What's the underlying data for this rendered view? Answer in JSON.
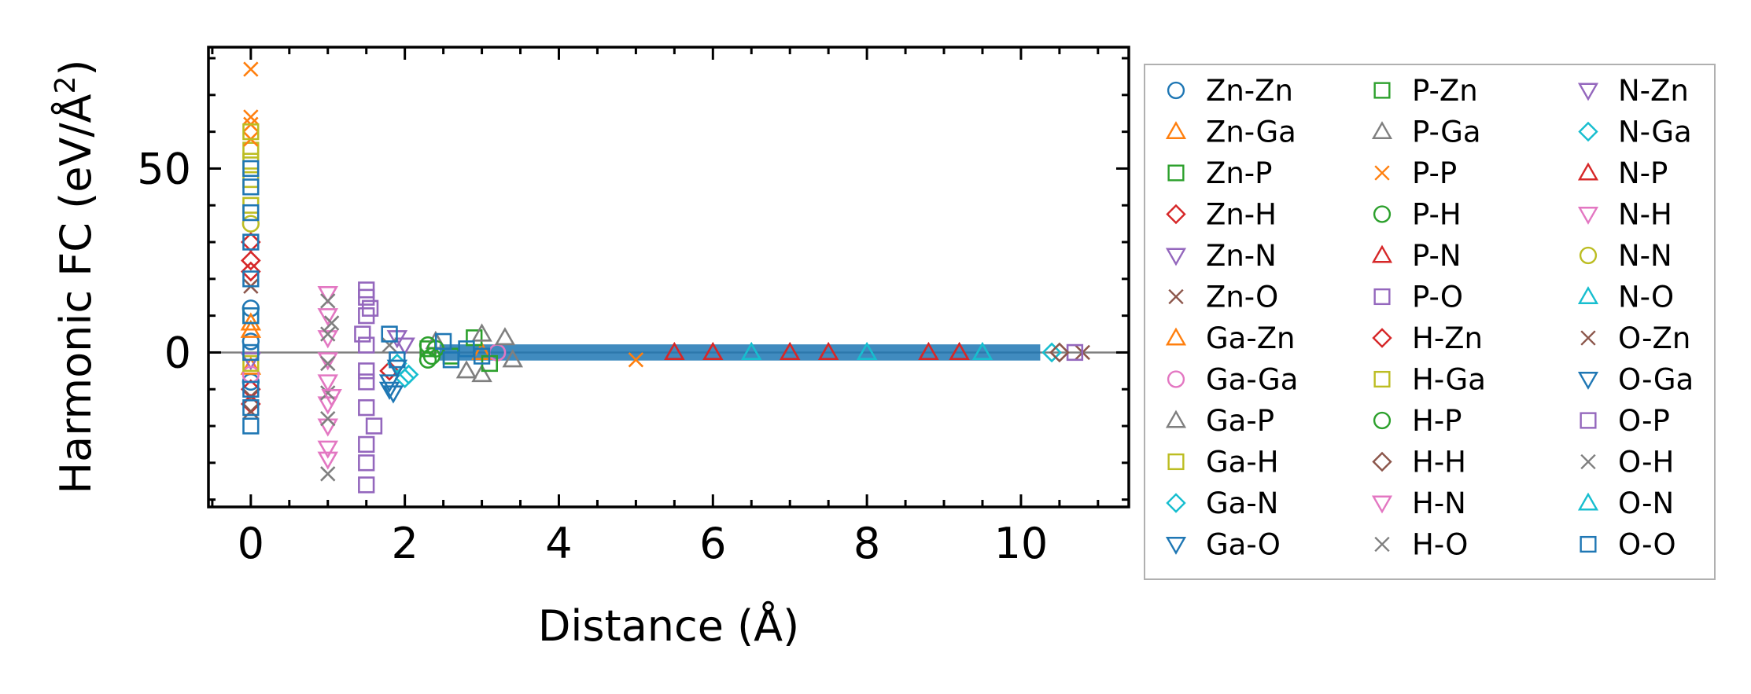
{
  "chart_data": {
    "type": "scatter",
    "title": "",
    "xlabel": "Distance (Å)",
    "ylabel_main": "Harmonic FC (eV/Å",
    "ylabel_sup": "2",
    "ylabel_close": ")",
    "xlim": [
      -0.55,
      11.4
    ],
    "ylim": [
      -42,
      83
    ],
    "xticks": [
      0,
      2,
      4,
      6,
      8,
      10
    ],
    "xtick_labels": [
      "0",
      "2",
      "4",
      "6",
      "8",
      "10"
    ],
    "yticks": [
      0,
      50
    ],
    "ytick_labels": [
      "0",
      "50"
    ],
    "zero_line": 0,
    "grid": false,
    "legend_position": "right, outside plot",
    "legend_columns": 3,
    "series": [
      {
        "name": "Zn-Zn",
        "marker": "circle",
        "color": "#1f77b4",
        "points": [
          [
            0,
            3
          ],
          [
            0,
            -8
          ],
          [
            0,
            12
          ]
        ]
      },
      {
        "name": "Zn-Ga",
        "marker": "triangle-up",
        "color": "#ff7f0e",
        "points": [
          [
            0,
            6
          ],
          [
            0,
            -4
          ]
        ]
      },
      {
        "name": "Zn-P",
        "marker": "square",
        "color": "#2ca02c",
        "points": [
          [
            0,
            10
          ],
          [
            2.3,
            1
          ],
          [
            2.6,
            -1
          ]
        ]
      },
      {
        "name": "Zn-H",
        "marker": "diamond",
        "color": "#d62728",
        "points": [
          [
            0,
            30
          ],
          [
            0,
            -10
          ],
          [
            0,
            22
          ],
          [
            1.8,
            -5
          ]
        ]
      },
      {
        "name": "Zn-N",
        "marker": "triangle-down",
        "color": "#9467bd",
        "points": [
          [
            0,
            -2
          ],
          [
            2.0,
            2
          ]
        ]
      },
      {
        "name": "Zn-O",
        "marker": "x",
        "color": "#8c564b",
        "points": [
          [
            0,
            18
          ],
          [
            0,
            -12
          ],
          [
            10.8,
            0
          ]
        ]
      },
      {
        "name": "Ga-Zn",
        "marker": "triangle-up",
        "color": "#ff7f0e",
        "points": [
          [
            0,
            8
          ],
          [
            3.0,
            0
          ]
        ]
      },
      {
        "name": "Ga-Ga",
        "marker": "circle",
        "color": "#e377c2",
        "points": [
          [
            0,
            -6
          ],
          [
            3.2,
            0
          ]
        ]
      },
      {
        "name": "Ga-P",
        "marker": "triangle-up",
        "color": "#7f7f7f",
        "points": [
          [
            2.4,
            3
          ],
          [
            2.8,
            -5
          ],
          [
            3.3,
            4
          ],
          [
            3.0,
            -6
          ]
        ]
      },
      {
        "name": "Ga-H",
        "marker": "square",
        "color": "#bcbd22",
        "points": [
          [
            0,
            55
          ],
          [
            0,
            40
          ],
          [
            0,
            -3
          ]
        ]
      },
      {
        "name": "Ga-N",
        "marker": "diamond",
        "color": "#17becf",
        "points": [
          [
            1.9,
            -3
          ],
          [
            2.0,
            -7
          ],
          [
            10.4,
            0
          ]
        ]
      },
      {
        "name": "Ga-O",
        "marker": "triangle-down",
        "color": "#1f77b4",
        "points": [
          [
            1.8,
            -8
          ],
          [
            1.85,
            -11
          ],
          [
            1.9,
            -4
          ]
        ]
      },
      {
        "name": "P-Zn",
        "marker": "square",
        "color": "#2ca02c",
        "points": [
          [
            2.9,
            4
          ],
          [
            3.1,
            -3
          ]
        ]
      },
      {
        "name": "P-Ga",
        "marker": "triangle-up",
        "color": "#7f7f7f",
        "points": [
          [
            3.0,
            5
          ],
          [
            3.4,
            -2
          ]
        ]
      },
      {
        "name": "P-P",
        "marker": "x",
        "color": "#ff7f0e",
        "points": [
          [
            0,
            77
          ],
          [
            0,
            64
          ],
          [
            0,
            62
          ],
          [
            0,
            58
          ],
          [
            5.0,
            -2
          ]
        ]
      },
      {
        "name": "P-H",
        "marker": "circle",
        "color": "#2ca02c",
        "points": [
          [
            2.3,
            -2
          ],
          [
            2.3,
            2
          ]
        ]
      },
      {
        "name": "P-N",
        "marker": "triangle-up",
        "color": "#d62728",
        "points": [
          [
            6.0,
            0
          ],
          [
            7.5,
            0
          ],
          [
            8.8,
            0
          ]
        ]
      },
      {
        "name": "P-O",
        "marker": "square",
        "color": "#9467bd",
        "points": [
          [
            1.5,
            17
          ],
          [
            1.5,
            10
          ],
          [
            1.5,
            2
          ],
          [
            1.5,
            -8
          ],
          [
            1.5,
            -15
          ],
          [
            1.5,
            -25
          ],
          [
            1.5,
            -30
          ],
          [
            1.5,
            -36
          ],
          [
            1.55,
            12
          ],
          [
            1.6,
            -20
          ],
          [
            1.45,
            5
          ],
          [
            10.7,
            0
          ]
        ]
      },
      {
        "name": "H-Zn",
        "marker": "diamond",
        "color": "#d62728",
        "points": [
          [
            0,
            -14
          ],
          [
            0,
            25
          ]
        ]
      },
      {
        "name": "H-Ga",
        "marker": "square",
        "color": "#bcbd22",
        "points": [
          [
            0,
            60
          ],
          [
            0,
            52
          ],
          [
            0,
            47
          ]
        ]
      },
      {
        "name": "H-P",
        "marker": "circle",
        "color": "#2ca02c",
        "points": [
          [
            2.35,
            -1
          ],
          [
            2.4,
            1
          ]
        ]
      },
      {
        "name": "H-H",
        "marker": "diamond",
        "color": "#8c564b",
        "points": [
          [
            10.5,
            0
          ]
        ]
      },
      {
        "name": "H-N",
        "marker": "triangle-down",
        "color": "#e377c2",
        "points": [
          [
            1.0,
            16
          ],
          [
            1.0,
            10
          ],
          [
            1.0,
            4
          ],
          [
            1.0,
            -2
          ],
          [
            1.0,
            -8
          ],
          [
            1.0,
            -14
          ],
          [
            1.0,
            -20
          ],
          [
            1.0,
            -26
          ],
          [
            1.0,
            -29
          ]
        ]
      },
      {
        "name": "H-O",
        "marker": "x",
        "color": "#7f7f7f",
        "points": [
          [
            1.0,
            14
          ],
          [
            1.0,
            5
          ],
          [
            1.0,
            -3
          ],
          [
            1.0,
            -11
          ],
          [
            1.0,
            -33
          ],
          [
            1.0,
            -18
          ],
          [
            1.8,
            2
          ]
        ]
      },
      {
        "name": "N-Zn",
        "marker": "triangle-down",
        "color": "#9467bd",
        "points": [
          [
            1.9,
            4
          ]
        ]
      },
      {
        "name": "N-Ga",
        "marker": "diamond",
        "color": "#17becf",
        "points": [
          [
            2.05,
            -6
          ]
        ]
      },
      {
        "name": "N-P",
        "marker": "triangle-up",
        "color": "#d62728",
        "points": [
          [
            5.5,
            0
          ],
          [
            7.0,
            0
          ],
          [
            9.2,
            0
          ]
        ]
      },
      {
        "name": "N-H",
        "marker": "triangle-down",
        "color": "#e377c2",
        "points": [
          [
            1.05,
            -12
          ]
        ]
      },
      {
        "name": "N-N",
        "marker": "circle",
        "color": "#bcbd22",
        "points": [
          [
            0,
            35
          ]
        ]
      },
      {
        "name": "N-O",
        "marker": "triangle-up",
        "color": "#17becf",
        "points": [
          [
            8.0,
            0
          ],
          [
            9.5,
            0
          ]
        ]
      },
      {
        "name": "O-Zn",
        "marker": "x",
        "color": "#8c564b",
        "points": [
          [
            0,
            -16
          ]
        ]
      },
      {
        "name": "O-Ga",
        "marker": "triangle-down",
        "color": "#1f77b4",
        "points": [
          [
            1.8,
            -10
          ]
        ]
      },
      {
        "name": "O-P",
        "marker": "square",
        "color": "#9467bd",
        "points": [
          [
            1.5,
            15
          ],
          [
            1.5,
            -5
          ]
        ]
      },
      {
        "name": "O-H",
        "marker": "x",
        "color": "#7f7f7f",
        "points": [
          [
            1.05,
            8
          ]
        ]
      },
      {
        "name": "O-N",
        "marker": "triangle-up",
        "color": "#17becf",
        "points": [
          [
            6.5,
            0
          ]
        ]
      },
      {
        "name": "O-O",
        "marker": "square",
        "color": "#1f77b4",
        "points": [
          [
            0,
            50
          ],
          [
            0,
            45
          ],
          [
            0,
            38
          ],
          [
            0,
            30
          ],
          [
            0,
            20
          ],
          [
            0,
            10
          ],
          [
            0,
            0
          ],
          [
            0,
            -10
          ],
          [
            0,
            -15
          ],
          [
            0,
            -20
          ],
          [
            1.8,
            5
          ],
          [
            1.9,
            -2
          ],
          [
            2.5,
            3
          ],
          [
            2.6,
            -2
          ],
          [
            2.8,
            1
          ],
          [
            3.0,
            -1
          ]
        ]
      }
    ]
  }
}
